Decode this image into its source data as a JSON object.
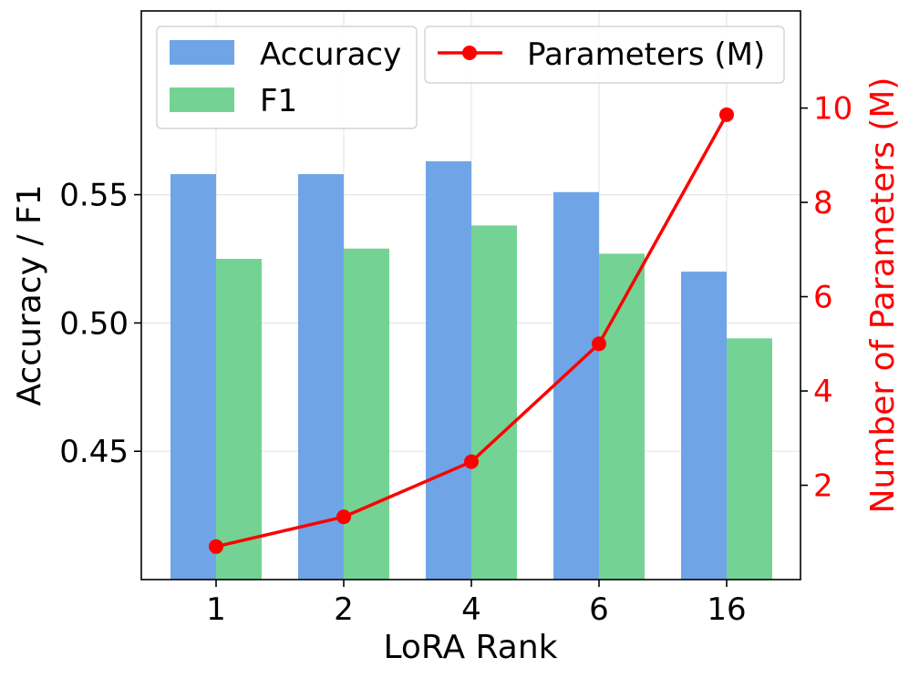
{
  "chart_data": {
    "type": "bar+line",
    "categories": [
      "1",
      "2",
      "4",
      "6",
      "16"
    ],
    "xlabel": "LoRA Rank",
    "ylabel_left": "Accuracy / F1",
    "ylabel_right": "Number of Parameters (M)",
    "ylim_left": [
      0.4,
      0.6216
    ],
    "ylim_right": [
      0.0,
      12.06
    ],
    "yticks_left": [
      0.45,
      0.5,
      0.55
    ],
    "yticks_left_labels": [
      "0.45",
      "0.50",
      "0.55"
    ],
    "yticks_right": [
      2,
      4,
      6,
      8,
      10
    ],
    "yticks_right_labels": [
      "2",
      "4",
      "6",
      "8",
      "10"
    ],
    "grid": true,
    "bar_series": [
      {
        "name": "Accuracy",
        "color": "#6fa5e6",
        "values": [
          0.558,
          0.558,
          0.563,
          0.551,
          0.52
        ]
      },
      {
        "name": "F1",
        "color": "#74d394",
        "values": [
          0.525,
          0.529,
          0.538,
          0.527,
          0.494
        ]
      }
    ],
    "line_series": {
      "name": "Parameters (M)",
      "color": "#ff0000",
      "values": [
        0.7,
        1.33,
        2.5,
        5.0,
        9.86
      ]
    },
    "legend_left_position": "top-left",
    "legend_right_position": "top-right",
    "right_axis_color": "#ff0000"
  }
}
